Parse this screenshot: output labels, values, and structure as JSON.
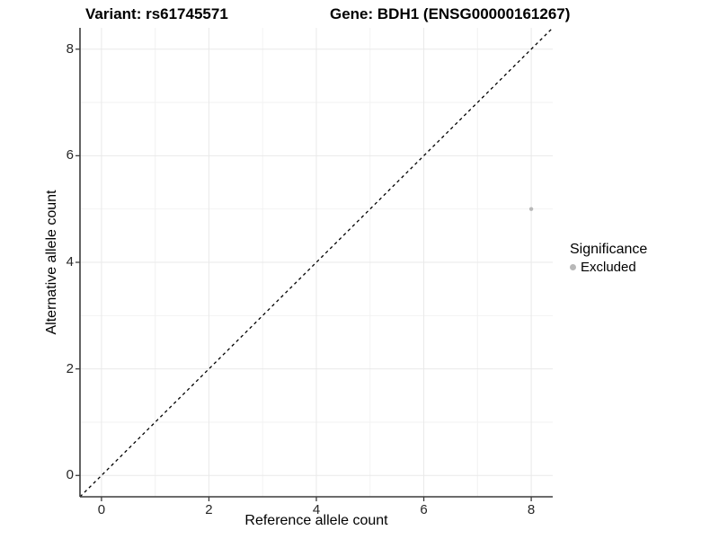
{
  "titles": {
    "variant": "Variant: rs61745571",
    "gene": "Gene: BDH1 (ENSG00000161267)"
  },
  "chart_data": {
    "type": "scatter",
    "xlabel": "Reference allele count",
    "ylabel": "Alternative allele count",
    "xlim": [
      -0.4,
      8.4
    ],
    "ylim": [
      -0.4,
      8.4
    ],
    "x_ticks": [
      0,
      2,
      4,
      6,
      8
    ],
    "y_ticks": [
      0,
      2,
      4,
      6,
      8
    ],
    "x_minor_ticks": [
      1,
      3,
      5,
      7
    ],
    "y_minor_ticks": [
      1,
      3,
      5,
      7
    ],
    "grid": true,
    "reference_line": {
      "slope": 1,
      "intercept": 0,
      "style": "dashed",
      "color": "#000000"
    },
    "series": [
      {
        "name": "Excluded",
        "color": "#b8b8b8",
        "points": [
          {
            "x": 8,
            "y": 5
          }
        ]
      }
    ],
    "legend": {
      "title": "Significance",
      "position": "right",
      "items": [
        {
          "label": "Excluded",
          "color": "#b8b8b8"
        }
      ]
    }
  },
  "colors": {
    "background": "#ffffff",
    "grid_major": "#e9e9e9",
    "grid_minor": "#f2f2f2",
    "axis_line": "#3c3c3c",
    "tick_mark": "#3c3c3c",
    "text": "#000000",
    "point": "#b8b8b8"
  }
}
